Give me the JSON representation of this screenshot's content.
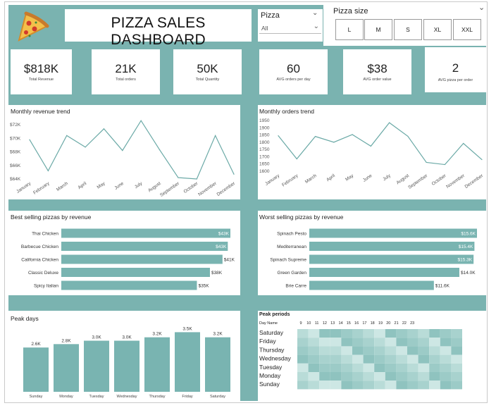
{
  "header": {
    "title": "PIZZA SALES DASHBOARD",
    "pizza_filter": {
      "label": "Pizza",
      "value": "All"
    },
    "size_filter": {
      "label": "Pizza size",
      "options": [
        "L",
        "M",
        "S",
        "XL",
        "XXL"
      ]
    }
  },
  "kpis": [
    {
      "value": "$818K",
      "label": "Total Revenue"
    },
    {
      "value": "21K",
      "label": "Total orders"
    },
    {
      "value": "50K",
      "label": "Total Quantity"
    },
    {
      "value": "60",
      "label": "AVG orders per day"
    },
    {
      "value": "$38",
      "label": "AVG order value"
    },
    {
      "value": "2",
      "label": "AVG pizza per order"
    }
  ],
  "colors": {
    "accent": "#7ab3b0",
    "bar": "#79b4b1",
    "line": "#6aa9a6"
  },
  "chart_data": [
    {
      "type": "line",
      "title": "Monthly revenue trend",
      "categories": [
        "January",
        "February",
        "March",
        "April",
        "May",
        "June",
        "July",
        "August",
        "September",
        "October",
        "November",
        "December"
      ],
      "values": [
        69800,
        65200,
        70400,
        68700,
        71400,
        68200,
        72600,
        68300,
        64200,
        64000,
        70400,
        64700
      ],
      "ylim": [
        64000,
        72000
      ],
      "yticks": [
        "$64K",
        "$66K",
        "$68K",
        "$70K",
        "$72K"
      ]
    },
    {
      "type": "line",
      "title": "Monthly orders trend",
      "categories": [
        "January",
        "February",
        "March",
        "April",
        "May",
        "June",
        "July",
        "August",
        "September",
        "October",
        "November",
        "December"
      ],
      "values": [
        1845,
        1685,
        1840,
        1800,
        1853,
        1773,
        1935,
        1841,
        1661,
        1646,
        1792,
        1680
      ],
      "ylim": [
        1600,
        1950
      ],
      "yticks": [
        "1600",
        "1650",
        "1700",
        "1750",
        "1800",
        "1850",
        "1900",
        "1950"
      ]
    },
    {
      "type": "bar",
      "orientation": "horizontal",
      "title": "Best selling pizzas by revenue",
      "categories": [
        "Thai Chicken",
        "Barbecue Chicken",
        "California Chicken",
        "Classic Deluxe",
        "Spicy Italian"
      ],
      "values": [
        43434,
        42768,
        41410,
        38180,
        34831
      ],
      "labels": [
        "$43K",
        "$43K",
        "$41K",
        "$38K",
        "$35K"
      ]
    },
    {
      "type": "bar",
      "orientation": "horizontal",
      "title": "Worst selling pizzas by revenue",
      "categories": [
        "Spinach Pesto",
        "Mediterranean",
        "Spinach Supreme",
        "Green Garden",
        "Brie Carre"
      ],
      "values": [
        15596,
        15360,
        15278,
        13956,
        11588
      ],
      "labels": [
        "$15.6K",
        "$15.4K",
        "$15.3K",
        "$14.0K",
        "$11.6K"
      ]
    },
    {
      "type": "bar",
      "title": "Peak days",
      "categories": [
        "Sunday",
        "Monday",
        "Tuesday",
        "Wednesday",
        "Thursday",
        "Friday",
        "Saturday"
      ],
      "values": [
        2600,
        2800,
        3000,
        3000,
        3200,
        3500,
        3200
      ],
      "labels": [
        "2.6K",
        "2.8K",
        "3.0K",
        "3.0K",
        "3.2K",
        "3.5K",
        "3.2K"
      ]
    },
    {
      "type": "heatmap",
      "title": "Peak periods",
      "row_header": "Day Name",
      "rows": [
        "Saturday",
        "Friday",
        "Thursday",
        "Wednesday",
        "Tuesday",
        "Monday",
        "Sunday"
      ],
      "columns": [
        "9",
        "10",
        "11",
        "12",
        "13",
        "14",
        "15",
        "16",
        "17",
        "18",
        "19",
        "20",
        "21",
        "22",
        "23"
      ]
    }
  ]
}
